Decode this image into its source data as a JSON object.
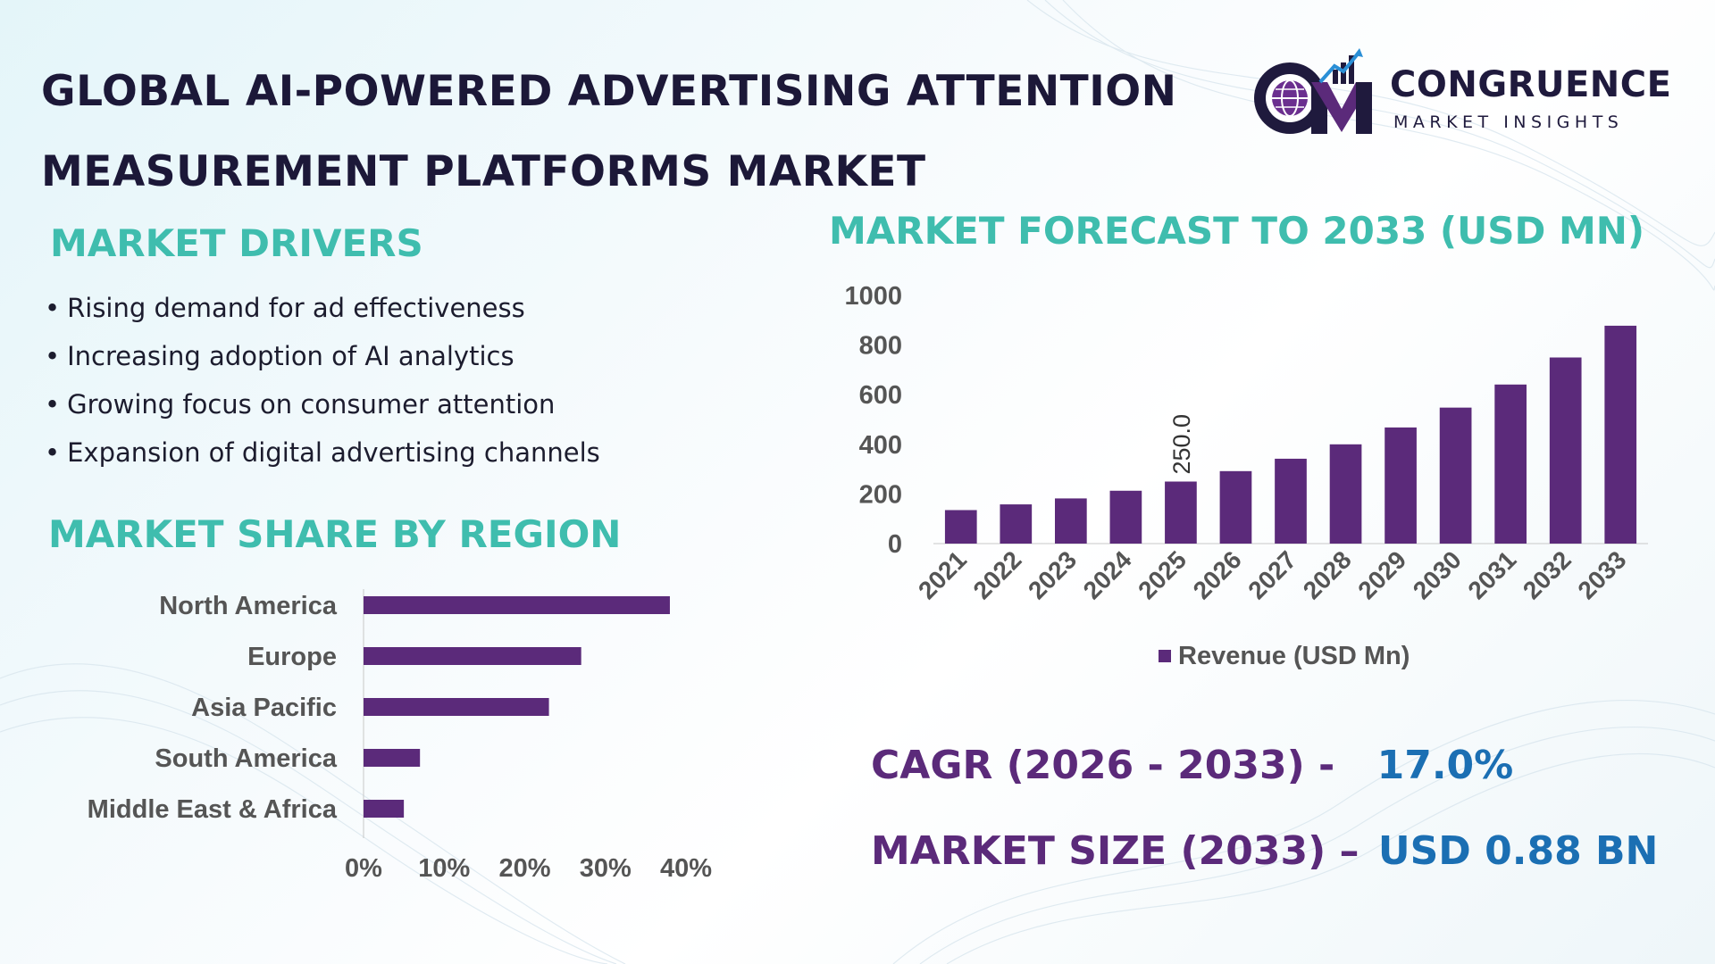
{
  "title": {
    "line1": "GLOBAL AI-POWERED ADVERTISING ATTENTION",
    "line2": "MEASUREMENT PLATFORMS MARKET"
  },
  "logo": {
    "mark": "CM",
    "name": "CONGRUENCE",
    "tagline": "MARKET INSIGHTS",
    "icon": "globe-bar-chart-icon"
  },
  "drivers": {
    "heading": "MARKET DRIVERS",
    "items": [
      "Rising demand for ad effectiveness",
      "Increasing adoption of AI analytics",
      "Growing focus on consumer attention",
      "Expansion of digital advertising channels"
    ]
  },
  "region": {
    "heading": "MARKET SHARE BY REGION"
  },
  "forecast": {
    "heading": "MARKET FORECAST TO 2033 (USD MN)"
  },
  "kpis": {
    "cagr_label": "CAGR (2026 - 2033) -",
    "cagr_value": "17.0%",
    "size_label": "MARKET SIZE (2033) –",
    "size_value": "USD 0.88 BN"
  },
  "colors": {
    "bar": "#5b2a7a",
    "heading": "#3fbdae",
    "accent": "#1b6fb3",
    "title": "#1c1838"
  },
  "chart_data": [
    {
      "type": "bar",
      "orientation": "horizontal",
      "categories": [
        "North America",
        "Europe",
        "Asia Pacific",
        "South America",
        "Middle East & Africa"
      ],
      "values": [
        38,
        27,
        23,
        7,
        5
      ],
      "xticks": [
        "0%",
        "10%",
        "20%",
        "30%",
        "40%"
      ],
      "xlim": [
        0,
        40
      ],
      "grid": false,
      "legend": "none"
    },
    {
      "type": "bar",
      "categories": [
        "2021",
        "2022",
        "2023",
        "2024",
        "2025",
        "2026",
        "2027",
        "2028",
        "2029",
        "2030",
        "2031",
        "2032",
        "2033"
      ],
      "series": [
        {
          "name": "Revenue (USD Mn)",
          "values": [
            135,
            158,
            182,
            213,
            250,
            292,
            342,
            400,
            468,
            548,
            641,
            750,
            878
          ]
        }
      ],
      "data_labels": [
        {
          "category": "2025",
          "text": "250.0"
        }
      ],
      "yticks": [
        "0",
        "200",
        "400",
        "600",
        "800",
        "1000"
      ],
      "ylim": [
        0,
        1000
      ],
      "grid": false,
      "legend": "bottom-center"
    }
  ]
}
